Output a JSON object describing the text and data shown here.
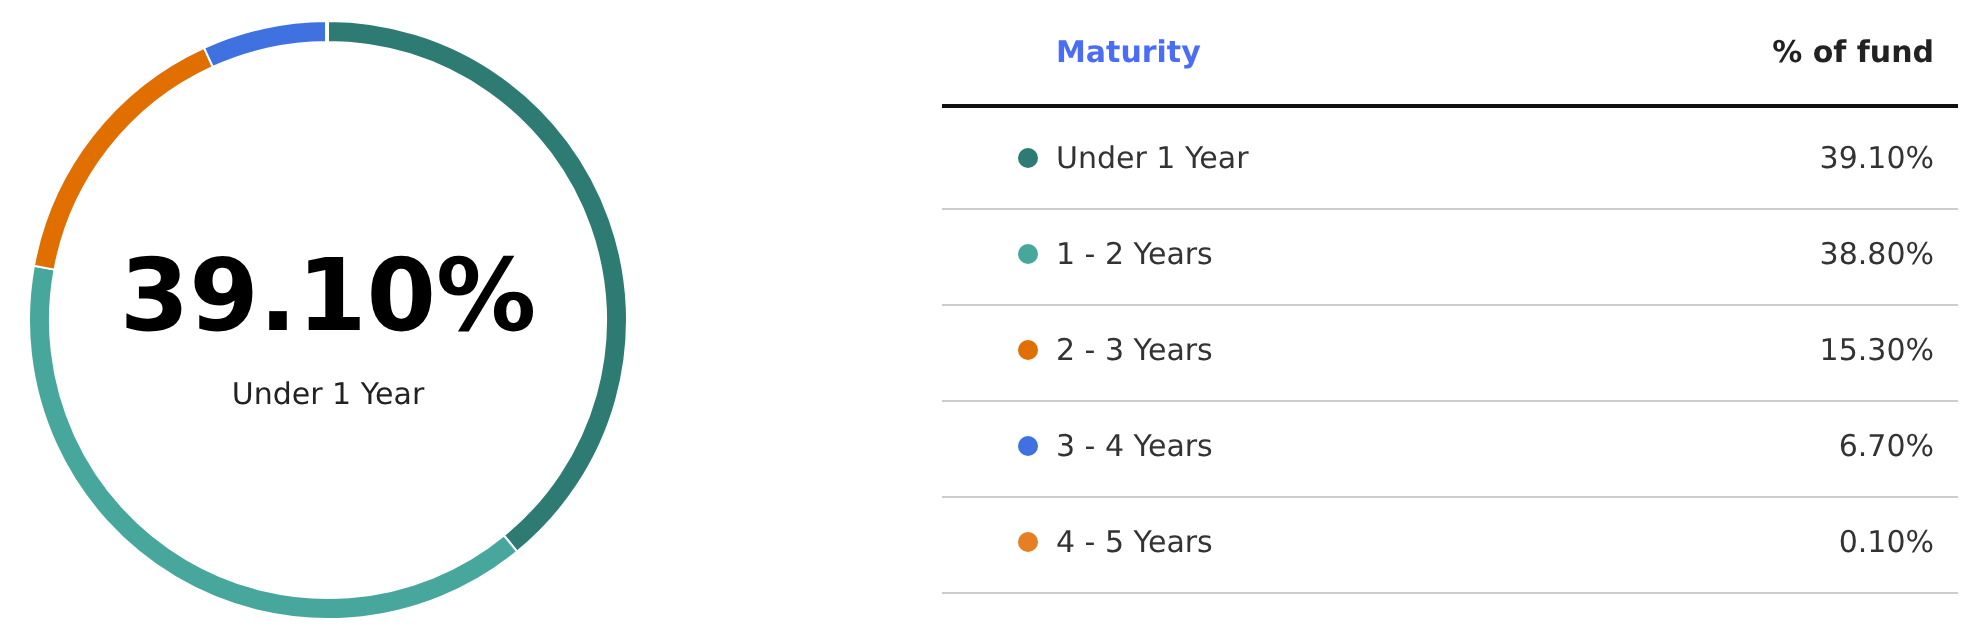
{
  "chart_data": {
    "type": "donut",
    "legend_title": "Maturity",
    "annotations": [
      "% of fund",
      "39.10%",
      "Under 1 Year"
    ],
    "categories": [
      "Under 1 Year",
      "1 - 2 Years",
      "2 - 3 Years",
      "3 - 4 Years",
      "4 - 5 Years"
    ],
    "values": [
      39.1,
      38.8,
      15.3,
      6.7,
      0.1
    ],
    "colors": [
      "#2e7b73",
      "#48a79c",
      "#e06f00",
      "#3f72e0",
      "#e67e22"
    ],
    "value_labels": [
      "39.10%",
      "38.80%",
      "15.30%",
      "6.70%",
      "0.10%"
    ],
    "legend": "right"
  }
}
